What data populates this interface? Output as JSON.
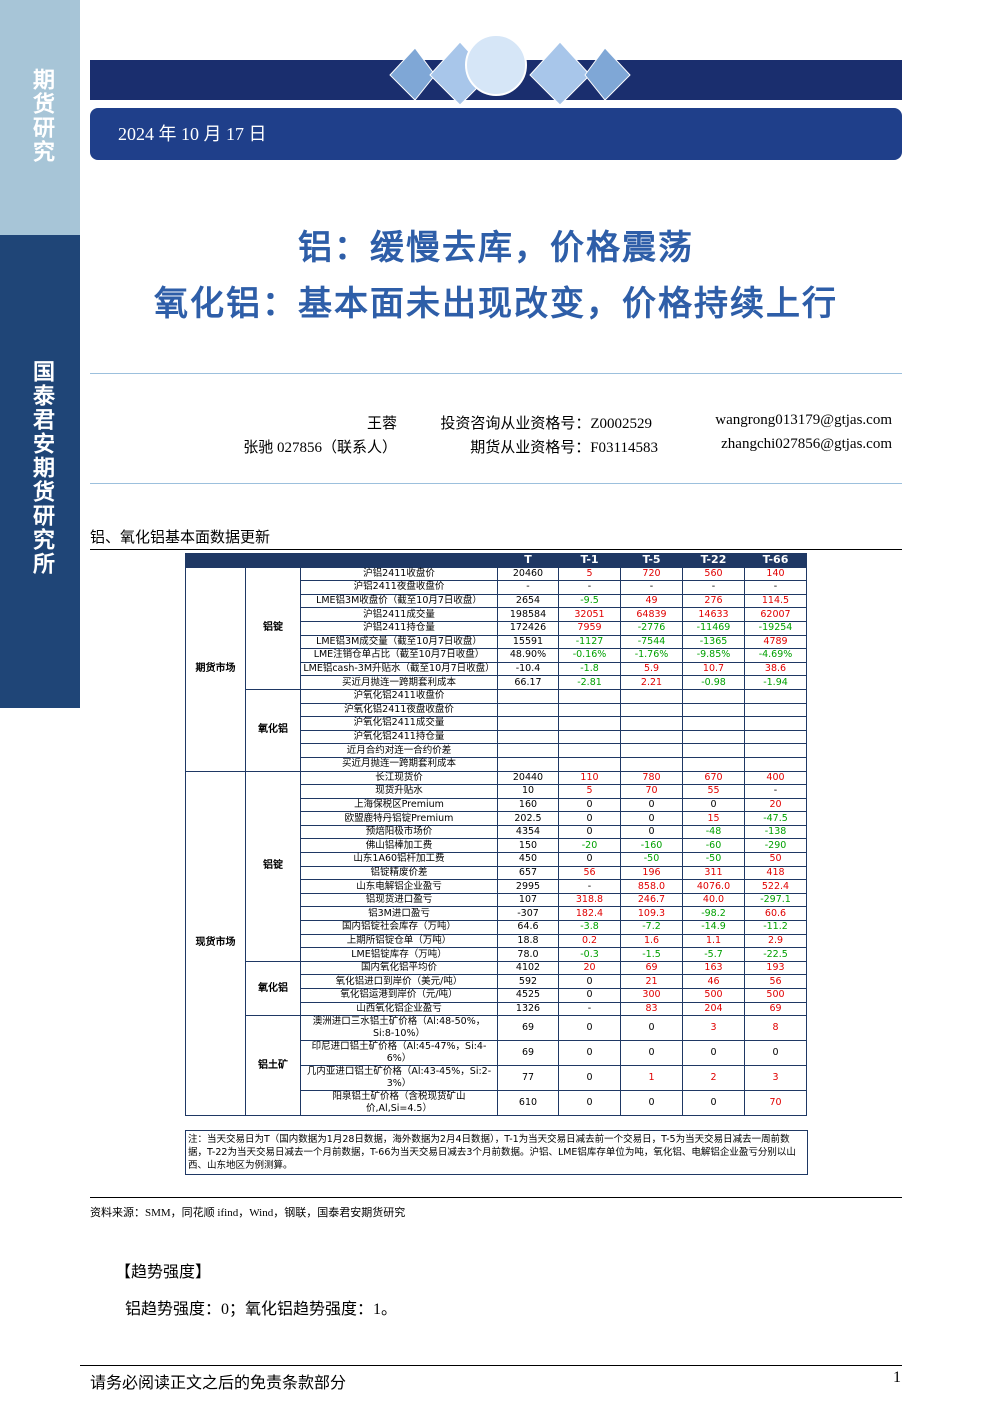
{
  "header": {
    "sidebar_top": "期货研究",
    "sidebar_main": "国泰君安期货研究所",
    "date": "2024 年 10 月 17 日"
  },
  "titles": [
    "铝：缓慢去库，价格震荡",
    "氧化铝：基本面未出现改变，价格持续上行"
  ],
  "authors": [
    [
      "王蓉",
      "投资咨询从业资格号：Z0002529",
      "wangrong013179@gtjas.com"
    ],
    [
      "张驰 027856（联系人）",
      "期货从业资格号：F03114583",
      "zhangchi027856@gtjas.com"
    ]
  ],
  "table": {
    "title": "铝、氧化铝基本面数据更新",
    "header": [
      "T",
      "T-1",
      "T-5",
      "T-22",
      "T-66"
    ],
    "groups": [
      {
        "name": "期货市场",
        "subgroups": [
          {
            "name": "铝锭",
            "rows": [
              [
                "沪铝2411收盘价",
                "20460",
                "5",
                "720",
                "560",
                "140"
              ],
              [
                "沪铝2411夜盘收盘价",
                "-",
                "-",
                "-",
                "-",
                "-"
              ],
              [
                "LME铝3M收盘价（截至10月7日收盘）",
                "2654",
                "-9.5",
                "49",
                "276",
                "114.5"
              ],
              [
                "沪铝2411成交量",
                "198584",
                "32051",
                "64839",
                "14633",
                "62007"
              ],
              [
                "沪铝2411持仓量",
                "172426",
                "7959",
                "-2776",
                "-11469",
                "-19254"
              ],
              [
                "LME铝3M成交量（截至10月7日收盘）",
                "15591",
                "-1127",
                "-7544",
                "-1365",
                "4789"
              ],
              [
                "LME注销仓单占比（截至10月7日收盘）",
                "48.90%",
                "-0.16%",
                "-1.76%",
                "-9.85%",
                "-4.69%"
              ],
              [
                "LME铝cash-3M升贴水（截至10月7日收盘）",
                "-10.4",
                "-1.8",
                "5.9",
                "10.7",
                "38.6"
              ],
              [
                "买近月抛连一跨期套利成本",
                "66.17",
                "-2.81",
                "2.21",
                "-0.98",
                "-1.94"
              ]
            ]
          },
          {
            "name": "氧化铝",
            "rows": [
              [
                "沪氧化铝2411收盘价"
              ],
              [
                "沪氧化铝2411夜盘收盘价"
              ],
              [
                "沪氧化铝2411成交量"
              ],
              [
                "沪氧化铝2411持仓量"
              ],
              [
                "近月合约对连一合约价差"
              ],
              [
                "买近月抛连一跨期套利成本"
              ]
            ]
          }
        ]
      },
      {
        "name": "现货市场",
        "subgroups": [
          {
            "name": "铝锭",
            "rows": [
              [
                "长江现货价",
                "20440",
                "110",
                "780",
                "670",
                "400"
              ],
              [
                "现货升贴水",
                "10",
                "5",
                "70",
                "55",
                "-"
              ],
              [
                "上海保税区Premium",
                "160",
                "0",
                "0",
                "0",
                "20"
              ],
              [
                "欧盟鹿特丹铝锭Premium",
                "202.5",
                "0",
                "0",
                "15",
                "-47.5"
              ],
              [
                "预焙阳极市场价",
                "4354",
                "0",
                "0",
                "-48",
                "-138"
              ],
              [
                "佛山铝棒加工费",
                "150",
                "-20",
                "-160",
                "-60",
                "-290"
              ],
              [
                "山东1A60铝杆加工费",
                "450",
                "0",
                "-50",
                "-50",
                "50"
              ],
              [
                "铝锭精废价差",
                "657",
                "56",
                "196",
                "311",
                "418"
              ],
              [
                "山东电解铝企业盈亏",
                "2995",
                "-",
                "858.0",
                "4076.0",
                "522.4"
              ],
              [
                "铝现货进口盈亏",
                "107",
                "318.8",
                "246.7",
                "40.0",
                "-297.1"
              ],
              [
                "铝3M进口盈亏",
                "-307",
                "182.4",
                "109.3",
                "-98.2",
                "60.6"
              ],
              [
                "国内铝锭社会库存（万吨）",
                "64.6",
                "-3.8",
                "-7.2",
                "-14.9",
                "-11.2"
              ],
              [
                "上期所铝锭仓单（万吨）",
                "18.8",
                "0.2",
                "1.6",
                "1.1",
                "2.9"
              ],
              [
                "LME铝锭库存（万吨）",
                "78.0",
                "-0.3",
                "-1.5",
                "-5.7",
                "-22.5"
              ]
            ]
          },
          {
            "name": "氧化铝",
            "rows": [
              [
                "国内氧化铝平均价",
                "4102",
                "20",
                "69",
                "163",
                "193"
              ],
              [
                "氧化铝进口到岸价（美元/吨）",
                "592",
                "0",
                "21",
                "46",
                "56"
              ],
              [
                "氧化铝运港到岸价（元/吨）",
                "4525",
                "0",
                "300",
                "500",
                "500"
              ],
              [
                "山西氧化铝企业盈亏",
                "1326",
                "-",
                "83",
                "204",
                "69"
              ]
            ]
          },
          {
            "name": "铝土矿",
            "rows": [
              [
                "澳洲进口三水铝土矿价格（Al:48-50%，Si:8-10%）",
                "69",
                "0",
                "0",
                "3",
                "8"
              ],
              [
                "印尼进口铝土矿价格（Al:45-47%，Si:4-6%）",
                "69",
                "0",
                "0",
                "0",
                "0"
              ],
              [
                "几内亚进口铝土矿价格（Al:43-45%，Si:2-3%）",
                "77",
                "0",
                "1",
                "2",
                "3"
              ],
              [
                "阳泉铝土矿价格（含税现货矿山价,Al,Si=4.5）",
                "610",
                "0",
                "0",
                "0",
                "70"
              ]
            ]
          }
        ]
      }
    ],
    "note": "注：当天交易日为T（国内数据为1月28日数据，海外数据为2月4日数据），T-1为当天交易日减去前一个交易日，T-5为当天交易日减去一周前数据，T-22为当天交易日减去一个月前数据，T-66为当天交易日减去3个月前数据。沪铝、LME铝库存单位为吨，氧化铝、电解铝企业盈亏分别以山西、山东地区为例测算。"
  },
  "source": "资料来源：SMM，同花顺 ifind，Wind，钢联，国泰君安期货研究",
  "trend": {
    "heading": "【趋势强度】",
    "text": "铝趋势强度：0；氧化铝趋势强度：1。"
  },
  "footer": {
    "disclaimer": "请务必阅读正文之后的免责条款部分",
    "page": "1"
  }
}
